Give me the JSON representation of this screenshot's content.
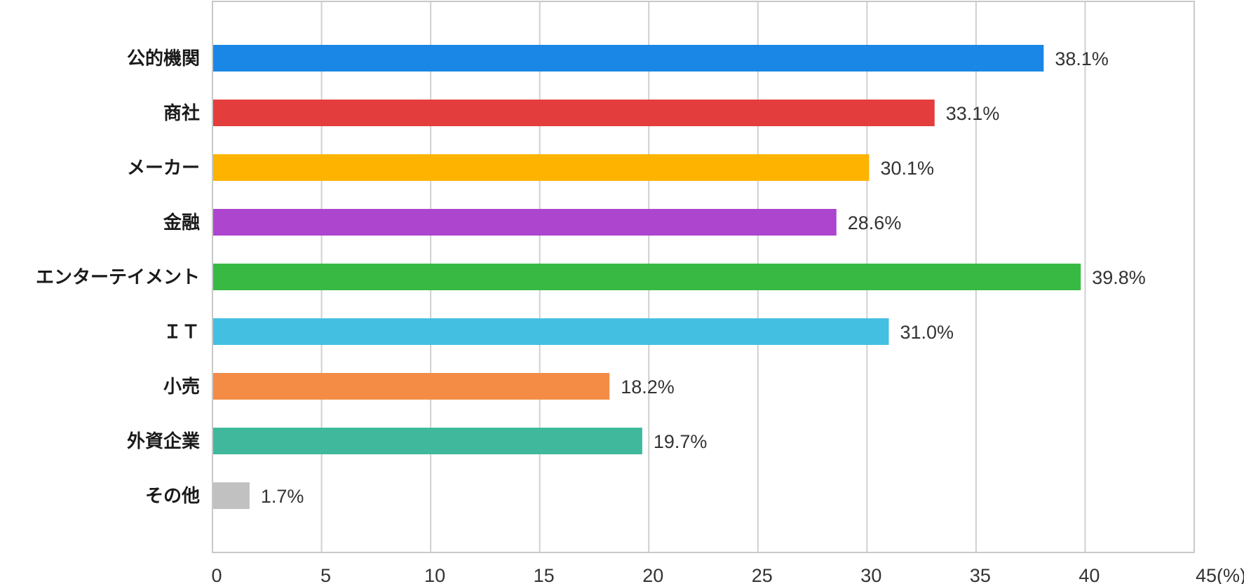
{
  "chart_data": {
    "type": "bar",
    "orientation": "horizontal",
    "categories": [
      "公的機関",
      "商社",
      "メーカー",
      "金融",
      "エンターテイメント",
      "ＩＴ",
      "小売",
      "外資企業",
      "その他"
    ],
    "values": [
      38.1,
      33.1,
      30.1,
      28.6,
      39.8,
      31.0,
      18.2,
      19.7,
      1.7
    ],
    "value_labels": [
      "38.1%",
      "33.1%",
      "30.1%",
      "28.6%",
      "39.8%",
      "31.0%",
      "18.2%",
      "19.7%",
      "1.7%"
    ],
    "colors": [
      "#1a87e6",
      "#e43d3d",
      "#fdb300",
      "#ad45cf",
      "#38b943",
      "#43bfe2",
      "#f48c46",
      "#3fb89c",
      "#c1c1c1"
    ],
    "xlim": [
      0,
      45
    ],
    "x_ticks": [
      "0",
      "5",
      "10",
      "15",
      "20",
      "25",
      "30",
      "35",
      "40",
      "45(%)"
    ],
    "grid": true,
    "title": "",
    "xlabel": "",
    "ylabel": ""
  }
}
